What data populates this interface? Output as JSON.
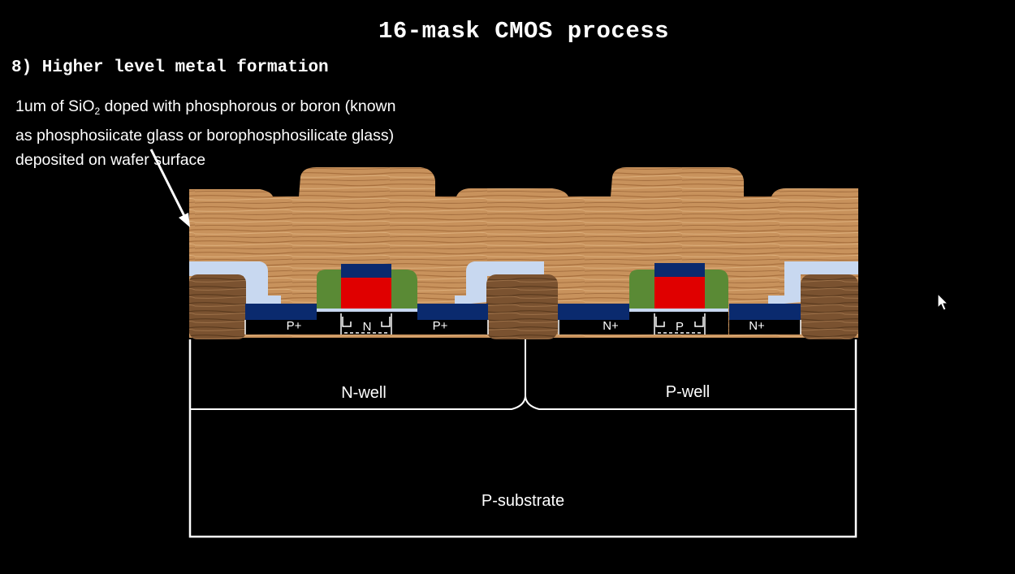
{
  "slide": {
    "title": "16-mask CMOS process",
    "step": "8) Higher level metal formation",
    "description": {
      "line1_pre": "1um of SiO",
      "line1_sub": "2",
      "line1_post": " doped with phosphorous or boron (known",
      "line2": "as phosphosiicate glass or borophosphosilicate glass)",
      "line3": "deposited on wafer surface"
    }
  },
  "diagram": {
    "labels": {
      "pmos_source": "P+",
      "pmos_channel": "N",
      "pmos_drain": "P+",
      "nmos_source": "N+",
      "nmos_channel": "P",
      "nmos_drain": "N+",
      "nwell": "N-well",
      "pwell": "P-well",
      "substrate": "P-substrate"
    },
    "colors": {
      "background": "#000000",
      "glass_oxide": "#c98f5a",
      "field_oxide": "#8a5e36",
      "metal": "#0a2a6e",
      "polysilicon": "#e00000",
      "spacer": "#5a8a35",
      "thin_oxide": "#c8d8f0",
      "outline": "#ffffff"
    }
  }
}
